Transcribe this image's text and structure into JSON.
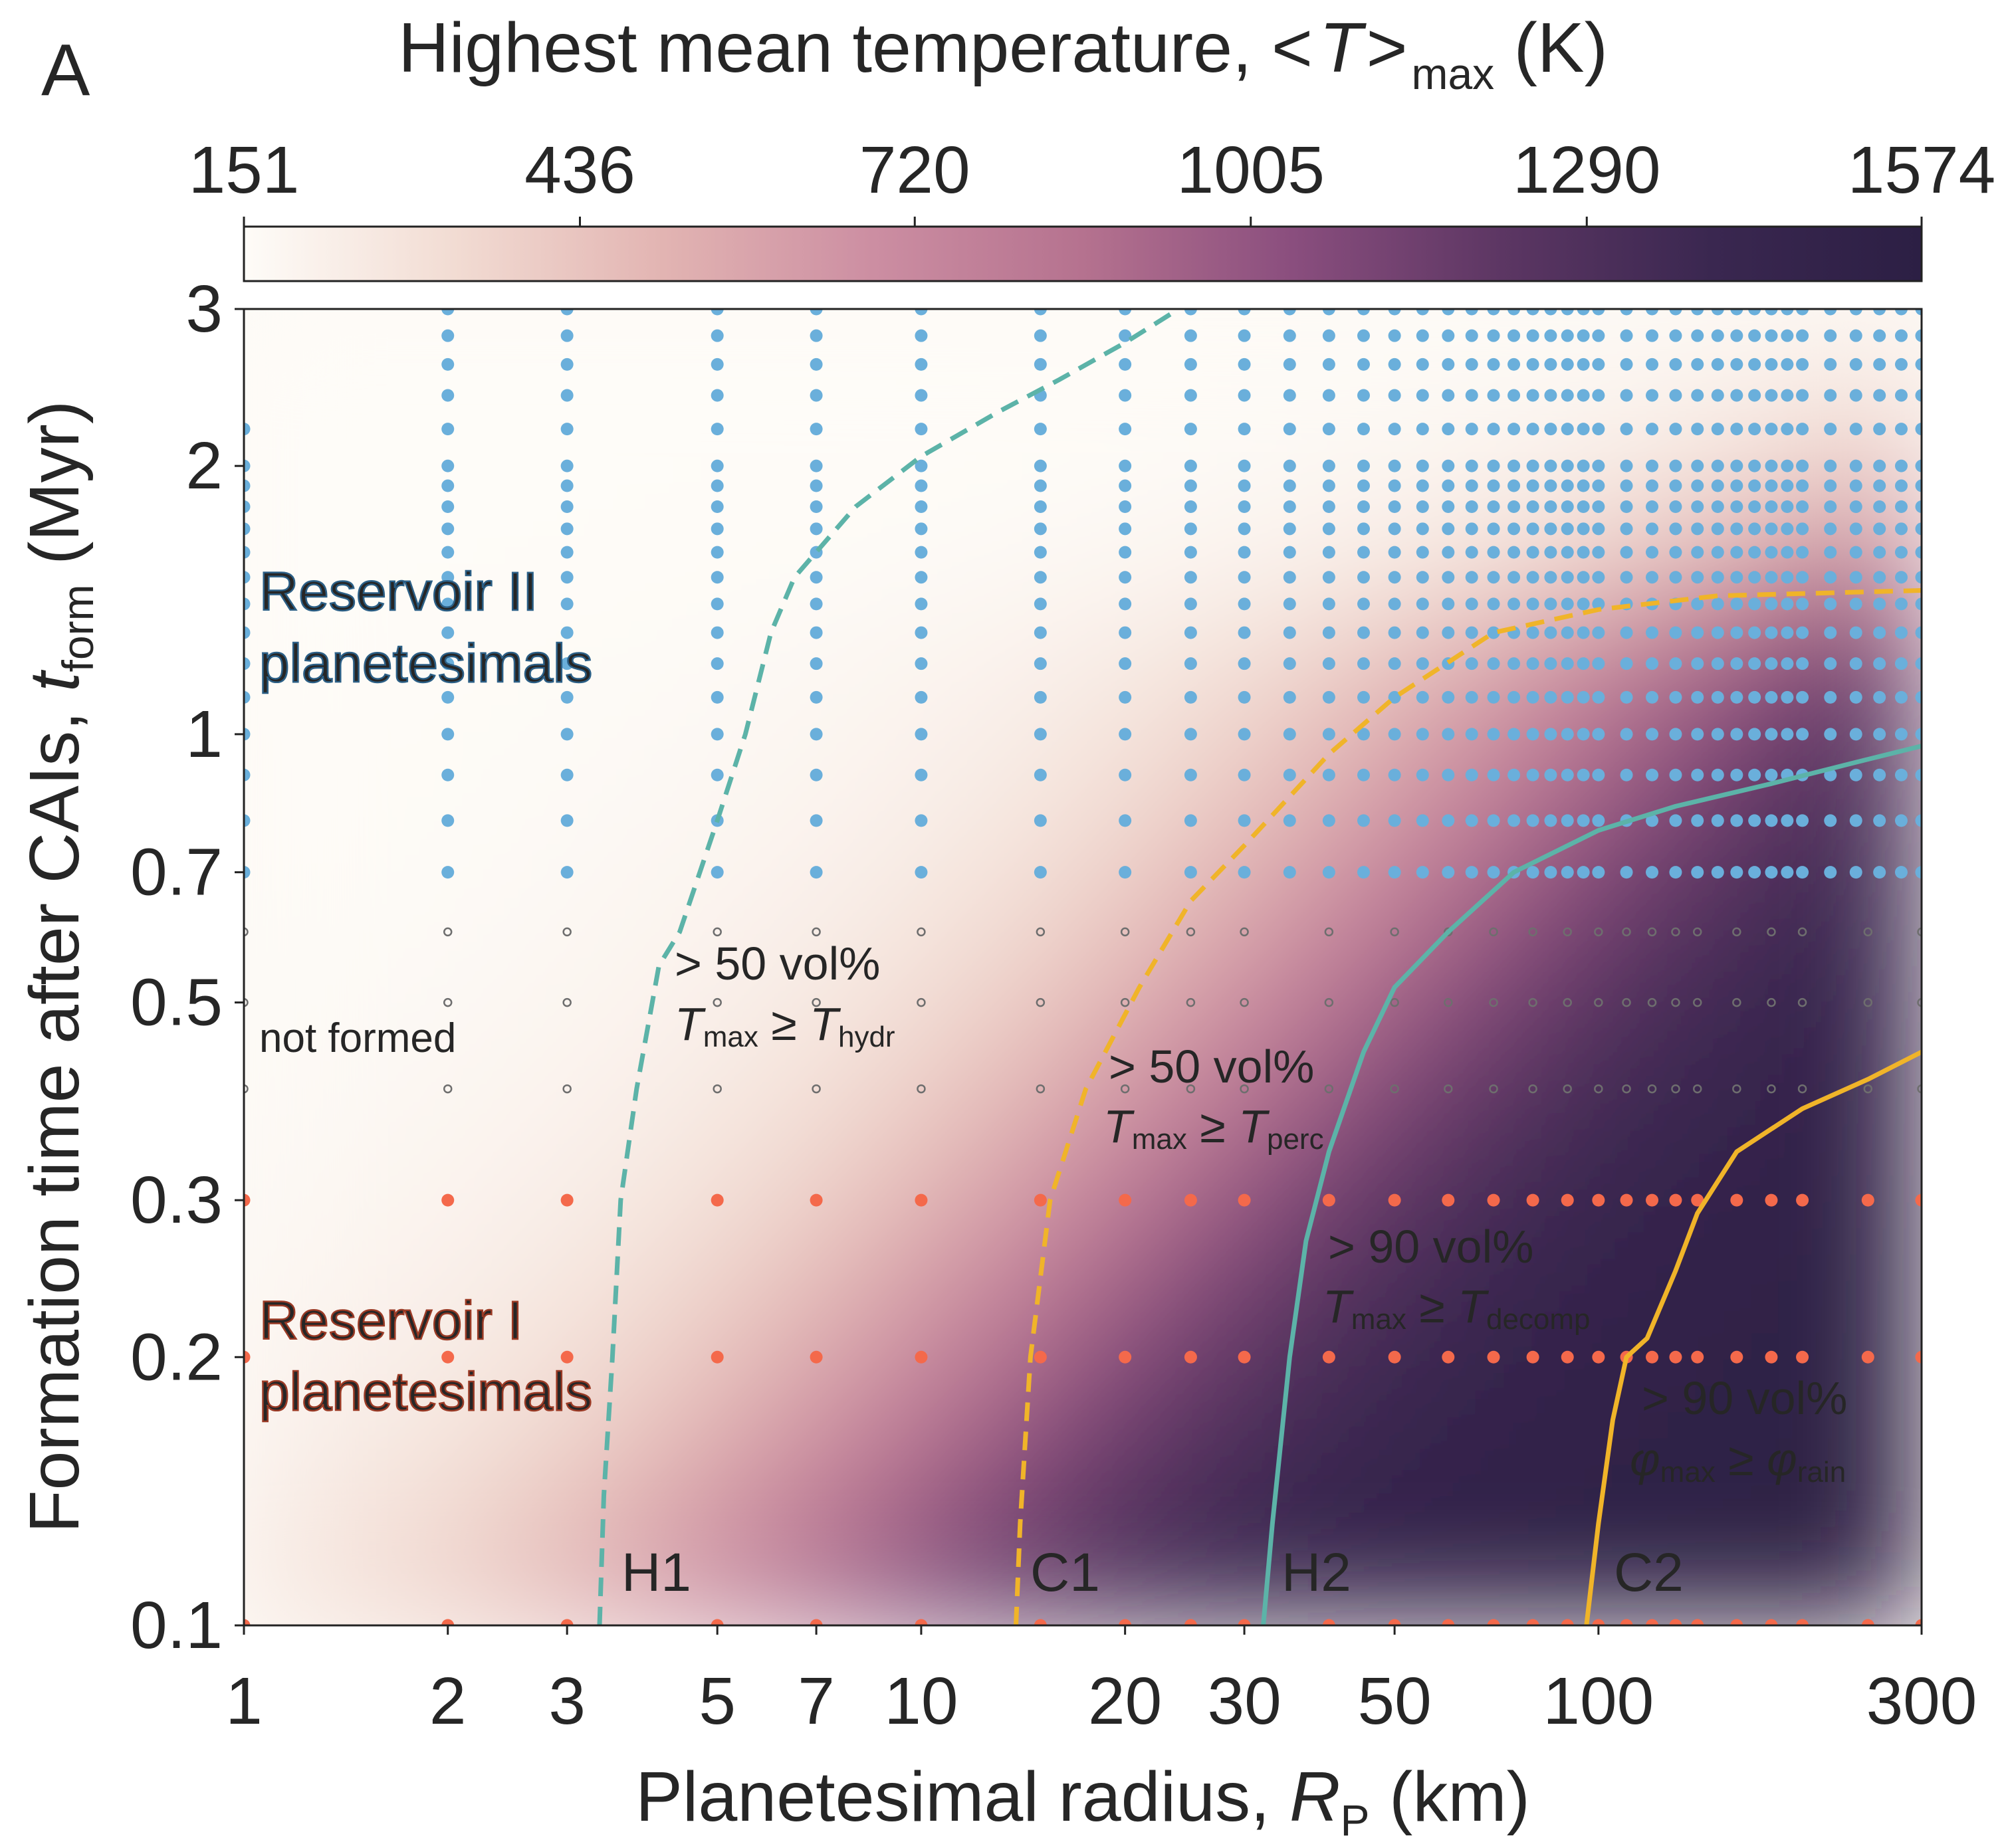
{
  "panel_label": "A",
  "colorbar": {
    "title_main": "Highest mean temperature, ",
    "title_lt": "<",
    "title_T": "T",
    "title_gt": ">",
    "title_sub": "max",
    "title_unit": " (K)",
    "ticks": [
      "151",
      "436",
      "720",
      "1005",
      "1290",
      "1574"
    ],
    "range": [
      151,
      1574
    ],
    "colors": [
      "#fefcf8",
      "#f2dcd3",
      "#e2b4b2",
      "#cc8ea2",
      "#b5728f",
      "#8a4e7e",
      "#5c3663",
      "#3a2750",
      "#2c1f44"
    ]
  },
  "chart_data": {
    "type": "scatter",
    "xscale": "log",
    "yscale": "log",
    "xlim": [
      1,
      300
    ],
    "ylim": [
      0.1,
      3
    ],
    "xlabel": {
      "main": "Planetesimal radius, ",
      "var": "R",
      "sub": "P",
      "unit": " (km)"
    },
    "ylabel": {
      "main": "Formation time after CAIs, ",
      "var": "t",
      "sub": "form",
      "unit": " (Myr)"
    },
    "xticks": [
      {
        "v": 1,
        "label": "1"
      },
      {
        "v": 2,
        "label": "2"
      },
      {
        "v": 3,
        "label": "3"
      },
      {
        "v": 5,
        "label": "5"
      },
      {
        "v": 7,
        "label": "7"
      },
      {
        "v": 10,
        "label": "10"
      },
      {
        "v": 20,
        "label": "20"
      },
      {
        "v": 30,
        "label": "30"
      },
      {
        "v": 50,
        "label": "50"
      },
      {
        "v": 100,
        "label": "100"
      },
      {
        "v": 300,
        "label": "300"
      }
    ],
    "yticks": [
      {
        "v": 0.1,
        "label": "0.1"
      },
      {
        "v": 0.2,
        "label": "0.2"
      },
      {
        "v": 0.3,
        "label": "0.3"
      },
      {
        "v": 0.5,
        "label": "0.5"
      },
      {
        "v": 0.7,
        "label": "0.7"
      },
      {
        "v": 1,
        "label": "1"
      },
      {
        "v": 2,
        "label": "2"
      },
      {
        "v": 3,
        "label": "3"
      }
    ],
    "radius_grid_coarse": [
      1,
      2,
      3,
      5,
      7,
      10,
      15,
      20,
      25,
      30,
      40,
      50,
      60,
      70,
      80,
      90,
      100,
      110,
      120,
      130,
      140,
      160,
      180,
      200,
      250,
      300
    ],
    "radius_grid_fine": [
      1,
      2,
      3,
      5,
      7,
      10,
      15,
      20,
      25,
      30,
      35,
      40,
      45,
      50,
      55,
      60,
      65,
      70,
      75,
      80,
      85,
      90,
      95,
      100,
      110,
      120,
      130,
      140,
      150,
      160,
      170,
      180,
      190,
      200,
      220,
      240,
      260,
      280,
      300
    ],
    "series": [
      {
        "name": "Reservoir I planetesimals",
        "role": "res1",
        "color": "#f4694b",
        "grid": "coarse",
        "t_form": [
          0.1,
          0.2,
          0.3
        ]
      },
      {
        "name": "not formed",
        "role": "notformed",
        "color": "#6e6e6e",
        "grid": "coarse",
        "t_form": [
          0.4,
          0.5,
          0.6
        ]
      },
      {
        "name": "Reservoir II planetesimals",
        "role": "res2",
        "color": "#6aafdb",
        "grid": "fine",
        "t_form": [
          0.7,
          0.8,
          0.9,
          1.0,
          1.1,
          1.2,
          1.3,
          1.4,
          1.5,
          1.6,
          1.7,
          1.8,
          1.9,
          2.0,
          2.2,
          2.4,
          2.6,
          2.8,
          3.0
        ],
        "r_min": 1,
        "r_skip_lt": 2
      }
    ],
    "series_labels": {
      "res2": [
        "Reservoir II",
        "planetesimals"
      ],
      "res1": [
        "Reservoir I",
        "planetesimals"
      ],
      "notformed": "not formed"
    },
    "contours": [
      {
        "id": "H1",
        "label": "H1",
        "color": "#5cb3a8",
        "dash": true,
        "desc": {
          "prefix": "> 50 vol%",
          "a": "T",
          "a_sub": "max",
          "op": " ≥ ",
          "b": "T",
          "b_sub": "hydr"
        },
        "points": [
          [
            3.35,
            0.1
          ],
          [
            3.4,
            0.14
          ],
          [
            3.5,
            0.2
          ],
          [
            3.6,
            0.3
          ],
          [
            3.8,
            0.4
          ],
          [
            4.1,
            0.55
          ],
          [
            4.4,
            0.6
          ],
          [
            5.0,
            0.8
          ],
          [
            5.5,
            1.0
          ],
          [
            6.0,
            1.3
          ],
          [
            6.5,
            1.5
          ],
          [
            8.0,
            1.8
          ],
          [
            10,
            2.05
          ],
          [
            13,
            2.3
          ],
          [
            16,
            2.5
          ],
          [
            20,
            2.75
          ],
          [
            24,
            3.0
          ]
        ]
      },
      {
        "id": "C1",
        "label": "C1",
        "color": "#f0b429",
        "dash": true,
        "desc": {
          "prefix": "> 50 vol%",
          "a": "T",
          "a_sub": "max",
          "op": " ≥ ",
          "b": "T",
          "b_sub": "perc"
        },
        "points": [
          [
            13.8,
            0.1
          ],
          [
            14.0,
            0.13
          ],
          [
            14.5,
            0.2
          ],
          [
            15.5,
            0.3
          ],
          [
            17.5,
            0.4
          ],
          [
            21,
            0.52
          ],
          [
            25,
            0.65
          ],
          [
            30,
            0.75
          ],
          [
            40,
            0.95
          ],
          [
            50,
            1.1
          ],
          [
            70,
            1.3
          ],
          [
            100,
            1.38
          ],
          [
            150,
            1.43
          ],
          [
            300,
            1.45
          ]
        ]
      },
      {
        "id": "H2",
        "label": "H2",
        "color": "#5cb3a8",
        "dash": false,
        "desc": {
          "prefix": "> 90 vol%",
          "a": "T",
          "a_sub": "max",
          "op": " ≥ ",
          "b": "T",
          "b_sub": "decomp"
        },
        "points": [
          [
            32,
            0.1
          ],
          [
            33,
            0.13
          ],
          [
            35,
            0.2
          ],
          [
            37,
            0.27
          ],
          [
            40,
            0.34
          ],
          [
            45,
            0.44
          ],
          [
            50,
            0.52
          ],
          [
            60,
            0.6
          ],
          [
            75,
            0.7
          ],
          [
            100,
            0.78
          ],
          [
            130,
            0.83
          ],
          [
            180,
            0.88
          ],
          [
            240,
            0.93
          ],
          [
            300,
            0.97
          ]
        ]
      },
      {
        "id": "C2",
        "label": "C2",
        "color": "#f0b429",
        "dash": false,
        "desc": {
          "prefix": "> 90 vol%",
          "a": "φ",
          "a_sub": "max",
          "op": " ≥ ",
          "b": "φ",
          "b_sub": "rain"
        },
        "points": [
          [
            96,
            0.1
          ],
          [
            100,
            0.13
          ],
          [
            105,
            0.17
          ],
          [
            110,
            0.2
          ],
          [
            118,
            0.21
          ],
          [
            130,
            0.25
          ],
          [
            140,
            0.29
          ],
          [
            160,
            0.34
          ],
          [
            200,
            0.38
          ],
          [
            250,
            0.41
          ],
          [
            300,
            0.44
          ]
        ]
      }
    ]
  }
}
